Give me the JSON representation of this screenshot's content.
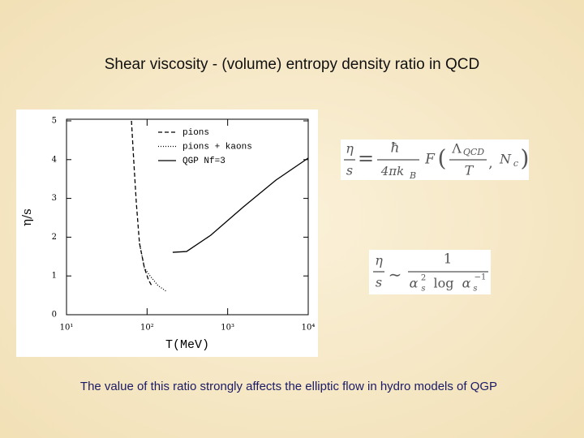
{
  "slide": {
    "title": "Shear viscosity - (volume) entropy density ratio in QCD",
    "caption": "The value of this ratio strongly affects the elliptic flow in hydro models of QGP"
  },
  "chart_data": {
    "type": "line",
    "xlabel": "T(MeV)",
    "ylabel": "η/s",
    "xscale": "log",
    "xlim": [
      10,
      10000
    ],
    "ylim": [
      0,
      5
    ],
    "xticks": [
      {
        "value": 10,
        "label": "10¹"
      },
      {
        "value": 100,
        "label": "10²"
      },
      {
        "value": 1000,
        "label": "10³"
      },
      {
        "value": 10000,
        "label": "10⁴"
      }
    ],
    "yticks": [
      0,
      1,
      2,
      3,
      4,
      5
    ],
    "legend": "upper left",
    "series": [
      {
        "name": "pions",
        "color": "#000000",
        "line_style": "dashed",
        "x": [
          64,
          68.5,
          73.5,
          80.5,
          92.6,
          104,
          114
        ],
        "values": [
          5,
          3.93,
          2.89,
          1.84,
          1.21,
          0.9,
          0.75
        ]
      },
      {
        "name": "pions + kaons",
        "color": "#000000",
        "line_style": "dotted",
        "x": [
          80.5,
          92.6,
          109,
          137,
          177
        ],
        "values": [
          1.84,
          1.21,
          1.0,
          0.75,
          0.59
        ]
      },
      {
        "name": "QGP  Nf=3",
        "color": "#000000",
        "line_style": "solid",
        "x": [
          208,
          309,
          617,
          1566,
          3964,
          10000
        ],
        "values": [
          1.61,
          1.63,
          2.05,
          2.78,
          3.47,
          4.04
        ]
      }
    ]
  },
  "formula_1": {
    "lhs_num": "η",
    "lhs_den": "s",
    "relation": "=",
    "factor_num": "ħ",
    "factor_den": "4πk",
    "factor_den_sub": "B",
    "function": "F",
    "open": "(",
    "arg_num": "Λ",
    "arg_num_sub": "QCD",
    "arg_den": "T",
    "sep": ",",
    "arg_2": "N",
    "arg_2_sub": "c",
    "close": ")"
  },
  "formula_2": {
    "lhs_num": "η",
    "lhs_den": "s",
    "relation": "∼",
    "num": "1",
    "den": "α",
    "den_sup": "2",
    "den_sub": "s",
    "log": "log",
    "base": "α",
    "base_sub": "s",
    "base_sup": "−1"
  }
}
